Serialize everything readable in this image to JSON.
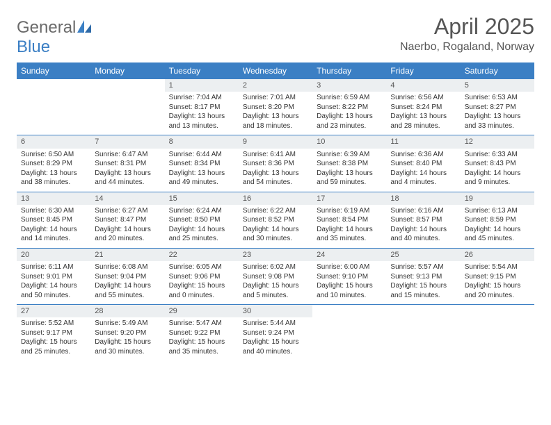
{
  "brand": {
    "part1": "General",
    "part2": "Blue"
  },
  "title": "April 2025",
  "location": "Naerbo, Rogaland, Norway",
  "colors": {
    "header_bg": "#3b7fc4",
    "header_text": "#ffffff",
    "daynum_bg": "#eceff1",
    "rule": "#3b7fc4",
    "logo_gray": "#6a6a6a",
    "logo_blue": "#3b7fc4"
  },
  "layout": {
    "cols": 7,
    "rows": 5,
    "first_weekday_col": 2
  },
  "weekdays": [
    "Sunday",
    "Monday",
    "Tuesday",
    "Wednesday",
    "Thursday",
    "Friday",
    "Saturday"
  ],
  "days": [
    {
      "n": 1,
      "sunrise": "7:04 AM",
      "sunset": "8:17 PM",
      "daylight": "13 hours and 13 minutes."
    },
    {
      "n": 2,
      "sunrise": "7:01 AM",
      "sunset": "8:20 PM",
      "daylight": "13 hours and 18 minutes."
    },
    {
      "n": 3,
      "sunrise": "6:59 AM",
      "sunset": "8:22 PM",
      "daylight": "13 hours and 23 minutes."
    },
    {
      "n": 4,
      "sunrise": "6:56 AM",
      "sunset": "8:24 PM",
      "daylight": "13 hours and 28 minutes."
    },
    {
      "n": 5,
      "sunrise": "6:53 AM",
      "sunset": "8:27 PM",
      "daylight": "13 hours and 33 minutes."
    },
    {
      "n": 6,
      "sunrise": "6:50 AM",
      "sunset": "8:29 PM",
      "daylight": "13 hours and 38 minutes."
    },
    {
      "n": 7,
      "sunrise": "6:47 AM",
      "sunset": "8:31 PM",
      "daylight": "13 hours and 44 minutes."
    },
    {
      "n": 8,
      "sunrise": "6:44 AM",
      "sunset": "8:34 PM",
      "daylight": "13 hours and 49 minutes."
    },
    {
      "n": 9,
      "sunrise": "6:41 AM",
      "sunset": "8:36 PM",
      "daylight": "13 hours and 54 minutes."
    },
    {
      "n": 10,
      "sunrise": "6:39 AM",
      "sunset": "8:38 PM",
      "daylight": "13 hours and 59 minutes."
    },
    {
      "n": 11,
      "sunrise": "6:36 AM",
      "sunset": "8:40 PM",
      "daylight": "14 hours and 4 minutes."
    },
    {
      "n": 12,
      "sunrise": "6:33 AM",
      "sunset": "8:43 PM",
      "daylight": "14 hours and 9 minutes."
    },
    {
      "n": 13,
      "sunrise": "6:30 AM",
      "sunset": "8:45 PM",
      "daylight": "14 hours and 14 minutes."
    },
    {
      "n": 14,
      "sunrise": "6:27 AM",
      "sunset": "8:47 PM",
      "daylight": "14 hours and 20 minutes."
    },
    {
      "n": 15,
      "sunrise": "6:24 AM",
      "sunset": "8:50 PM",
      "daylight": "14 hours and 25 minutes."
    },
    {
      "n": 16,
      "sunrise": "6:22 AM",
      "sunset": "8:52 PM",
      "daylight": "14 hours and 30 minutes."
    },
    {
      "n": 17,
      "sunrise": "6:19 AM",
      "sunset": "8:54 PM",
      "daylight": "14 hours and 35 minutes."
    },
    {
      "n": 18,
      "sunrise": "6:16 AM",
      "sunset": "8:57 PM",
      "daylight": "14 hours and 40 minutes."
    },
    {
      "n": 19,
      "sunrise": "6:13 AM",
      "sunset": "8:59 PM",
      "daylight": "14 hours and 45 minutes."
    },
    {
      "n": 20,
      "sunrise": "6:11 AM",
      "sunset": "9:01 PM",
      "daylight": "14 hours and 50 minutes."
    },
    {
      "n": 21,
      "sunrise": "6:08 AM",
      "sunset": "9:04 PM",
      "daylight": "14 hours and 55 minutes."
    },
    {
      "n": 22,
      "sunrise": "6:05 AM",
      "sunset": "9:06 PM",
      "daylight": "15 hours and 0 minutes."
    },
    {
      "n": 23,
      "sunrise": "6:02 AM",
      "sunset": "9:08 PM",
      "daylight": "15 hours and 5 minutes."
    },
    {
      "n": 24,
      "sunrise": "6:00 AM",
      "sunset": "9:10 PM",
      "daylight": "15 hours and 10 minutes."
    },
    {
      "n": 25,
      "sunrise": "5:57 AM",
      "sunset": "9:13 PM",
      "daylight": "15 hours and 15 minutes."
    },
    {
      "n": 26,
      "sunrise": "5:54 AM",
      "sunset": "9:15 PM",
      "daylight": "15 hours and 20 minutes."
    },
    {
      "n": 27,
      "sunrise": "5:52 AM",
      "sunset": "9:17 PM",
      "daylight": "15 hours and 25 minutes."
    },
    {
      "n": 28,
      "sunrise": "5:49 AM",
      "sunset": "9:20 PM",
      "daylight": "15 hours and 30 minutes."
    },
    {
      "n": 29,
      "sunrise": "5:47 AM",
      "sunset": "9:22 PM",
      "daylight": "15 hours and 35 minutes."
    },
    {
      "n": 30,
      "sunrise": "5:44 AM",
      "sunset": "9:24 PM",
      "daylight": "15 hours and 40 minutes."
    }
  ],
  "labels": {
    "sunrise": "Sunrise: ",
    "sunset": "Sunset: ",
    "daylight": "Daylight: "
  }
}
